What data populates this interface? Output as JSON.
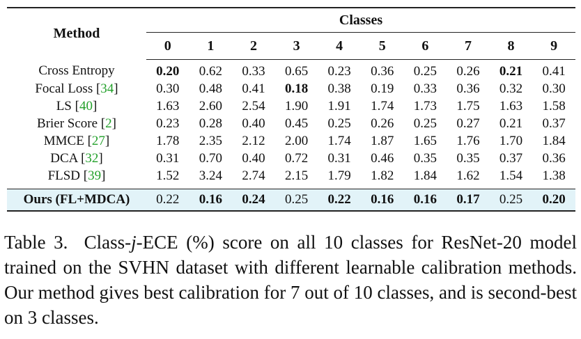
{
  "table": {
    "method_header": "Method",
    "classes_header": "Classes",
    "class_labels": [
      "0",
      "1",
      "2",
      "3",
      "4",
      "5",
      "6",
      "7",
      "8",
      "9"
    ],
    "rows": [
      {
        "name": "Cross Entropy",
        "ref": "",
        "values": [
          "0.20",
          "0.62",
          "0.33",
          "0.65",
          "0.23",
          "0.36",
          "0.25",
          "0.26",
          "0.21",
          "0.41"
        ],
        "bold": [
          true,
          false,
          false,
          false,
          false,
          false,
          false,
          false,
          true,
          false
        ]
      },
      {
        "name": "Focal Loss",
        "ref": "34",
        "values": [
          "0.30",
          "0.48",
          "0.41",
          "0.18",
          "0.38",
          "0.19",
          "0.33",
          "0.36",
          "0.32",
          "0.30"
        ],
        "bold": [
          false,
          false,
          false,
          true,
          false,
          false,
          false,
          false,
          false,
          false
        ]
      },
      {
        "name": "LS",
        "ref": "40",
        "values": [
          "1.63",
          "2.60",
          "2.54",
          "1.90",
          "1.91",
          "1.74",
          "1.73",
          "1.75",
          "1.63",
          "1.58"
        ],
        "bold": [
          false,
          false,
          false,
          false,
          false,
          false,
          false,
          false,
          false,
          false
        ]
      },
      {
        "name": "Brier Score",
        "ref": "2",
        "values": [
          "0.23",
          "0.28",
          "0.40",
          "0.45",
          "0.25",
          "0.26",
          "0.25",
          "0.27",
          "0.21",
          "0.37"
        ],
        "bold": [
          false,
          false,
          false,
          false,
          false,
          false,
          false,
          false,
          false,
          false
        ]
      },
      {
        "name": "MMCE",
        "ref": "27",
        "values": [
          "1.78",
          "2.35",
          "2.12",
          "2.00",
          "1.74",
          "1.87",
          "1.65",
          "1.76",
          "1.70",
          "1.84"
        ],
        "bold": [
          false,
          false,
          false,
          false,
          false,
          false,
          false,
          false,
          false,
          false
        ]
      },
      {
        "name": "DCA",
        "ref": "32",
        "values": [
          "0.31",
          "0.70",
          "0.40",
          "0.72",
          "0.31",
          "0.46",
          "0.35",
          "0.35",
          "0.37",
          "0.36"
        ],
        "bold": [
          false,
          false,
          false,
          false,
          false,
          false,
          false,
          false,
          false,
          false
        ]
      },
      {
        "name": "FLSD",
        "ref": "39",
        "values": [
          "1.52",
          "3.24",
          "2.74",
          "2.15",
          "1.79",
          "1.82",
          "1.84",
          "1.62",
          "1.54",
          "1.38"
        ],
        "bold": [
          false,
          false,
          false,
          false,
          false,
          false,
          false,
          false,
          false,
          false
        ]
      }
    ],
    "ours": {
      "name": "Ours (FL+MDCA)",
      "values": [
        "0.22",
        "0.16",
        "0.24",
        "0.25",
        "0.22",
        "0.16",
        "0.16",
        "0.17",
        "0.25",
        "0.20"
      ],
      "bold": [
        false,
        true,
        true,
        false,
        true,
        true,
        true,
        true,
        false,
        true
      ]
    },
    "highlight_color": "#e2f3f8",
    "ref_color": "#22a02a"
  },
  "caption": {
    "label": "Table 3.",
    "text_a": "Class-",
    "var": "j",
    "text_b": "-ECE (%) score on all 10 classes for ResNet-20 model trained on the SVHN dataset with different learnable calibration methods. Our method gives best calibration for 7 out of 10 classes, and is second-best on 3 classes."
  }
}
